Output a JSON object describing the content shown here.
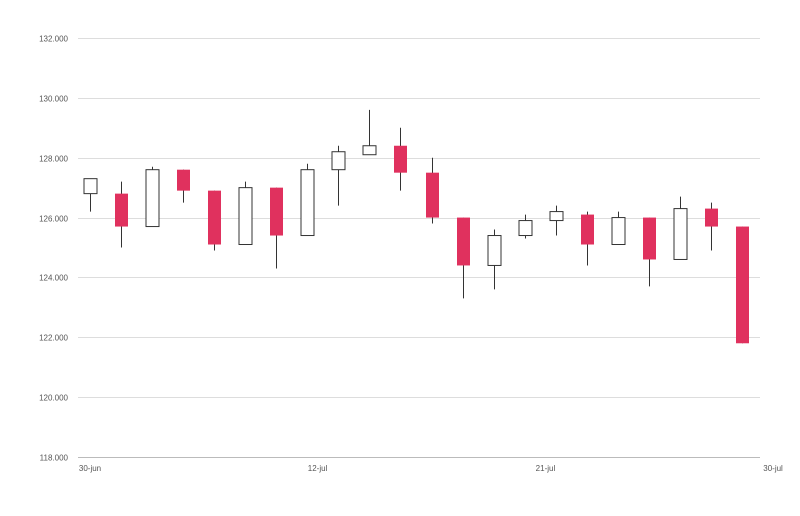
{
  "chart_data": {
    "type": "candlestick",
    "title": "",
    "xlabel": "",
    "ylabel": "",
    "ylim": [
      118000,
      132000
    ],
    "y_ticks": [
      118000,
      120000,
      122000,
      124000,
      126000,
      128000,
      130000,
      132000
    ],
    "y_tick_labels": [
      "118.000",
      "120.000",
      "122.000",
      "124.000",
      "126.000",
      "128.000",
      "130.000",
      "132.000"
    ],
    "x_tick_labels": [
      {
        "label": "30-jun",
        "index": 0
      },
      {
        "label": "12-jul",
        "index": 7.33
      },
      {
        "label": "21-jul",
        "index": 14.67
      },
      {
        "label": "30-jul",
        "index": 22
      }
    ],
    "grid": true,
    "colors": {
      "down": "#e0315e",
      "up_fill": "#ffffff",
      "outline": "#333333",
      "grid": "#dddddd",
      "axis": "#bbbbbb"
    },
    "candles": [
      {
        "open": 126800,
        "high": 127300,
        "low": 126200,
        "close": 127300
      },
      {
        "open": 126800,
        "high": 127200,
        "low": 125000,
        "close": 125700
      },
      {
        "open": 125700,
        "high": 127700,
        "low": 125700,
        "close": 127600
      },
      {
        "open": 127600,
        "high": 127600,
        "low": 126500,
        "close": 126900
      },
      {
        "open": 126900,
        "high": 126900,
        "low": 124900,
        "close": 125100
      },
      {
        "open": 125100,
        "high": 127200,
        "low": 125100,
        "close": 127000
      },
      {
        "open": 127000,
        "high": 127000,
        "low": 124300,
        "close": 125400
      },
      {
        "open": 125400,
        "high": 127800,
        "low": 125400,
        "close": 127600
      },
      {
        "open": 127600,
        "high": 128400,
        "low": 126400,
        "close": 128200
      },
      {
        "open": 128100,
        "high": 129600,
        "low": 128100,
        "close": 128400
      },
      {
        "open": 128400,
        "high": 129000,
        "low": 126900,
        "close": 127500
      },
      {
        "open": 127500,
        "high": 128000,
        "low": 125800,
        "close": 126000
      },
      {
        "open": 126000,
        "high": 126000,
        "low": 123300,
        "close": 124400
      },
      {
        "open": 124400,
        "high": 125600,
        "low": 123600,
        "close": 125400
      },
      {
        "open": 125400,
        "high": 126100,
        "low": 125300,
        "close": 125900
      },
      {
        "open": 125900,
        "high": 126400,
        "low": 125400,
        "close": 126200
      },
      {
        "open": 126100,
        "high": 126200,
        "low": 124400,
        "close": 125100
      },
      {
        "open": 125100,
        "high": 126200,
        "low": 125100,
        "close": 126000
      },
      {
        "open": 126000,
        "high": 126000,
        "low": 123700,
        "close": 124600
      },
      {
        "open": 124600,
        "high": 126700,
        "low": 124600,
        "close": 126300
      },
      {
        "open": 126300,
        "high": 126500,
        "low": 124900,
        "close": 125700
      },
      {
        "open": 125700,
        "high": 125700,
        "low": 121800,
        "close": 121800
      }
    ]
  }
}
